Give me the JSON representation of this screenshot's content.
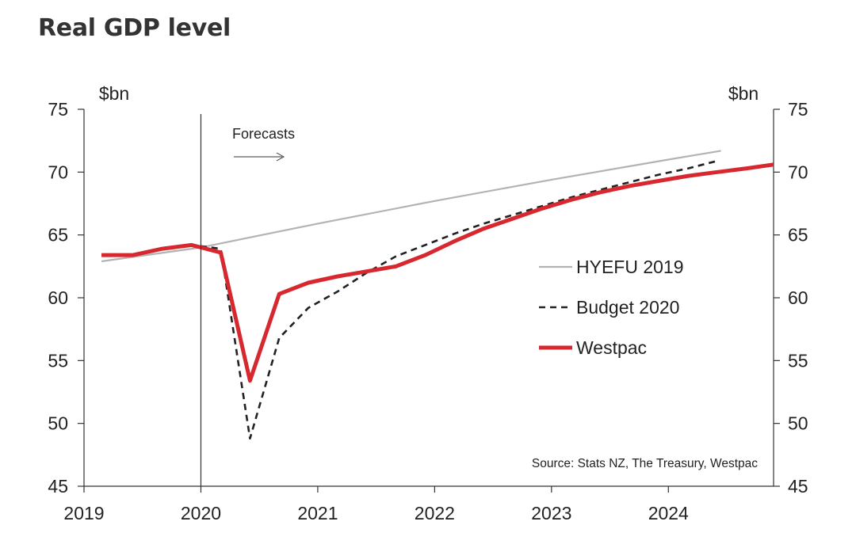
{
  "colors": {
    "hyefu": "#b3b3b3",
    "budget": "#222222",
    "westpac": "#d7282f",
    "axis": "#333333",
    "text": "#222222"
  },
  "chart_data": {
    "type": "line",
    "title": "Real GDP level",
    "ylabel_left": "$bn",
    "ylabel_right": "$bn",
    "ylim": [
      45,
      75
    ],
    "yticks": [
      45,
      50,
      55,
      60,
      65,
      70,
      75
    ],
    "xlim": [
      2019,
      2024.9
    ],
    "xticks": [
      2019,
      2020,
      2021,
      2022,
      2023,
      2024
    ],
    "forecast_start": 2020,
    "forecast_label": "Forecasts",
    "source": "Source: Stats NZ, The Treasury, Westpac",
    "legend_position": "right",
    "series": [
      {
        "name": "HYEFU 2019",
        "style": "solid-thin",
        "x": [
          2019.15,
          2020.0,
          2020.42,
          2021.0,
          2022.0,
          2023.0,
          2024.0,
          2024.45
        ],
        "y": [
          62.9,
          64.0,
          64.8,
          65.9,
          67.7,
          69.4,
          71.0,
          71.7
        ]
      },
      {
        "name": "Budget 2020",
        "style": "dashed",
        "x": [
          2019.15,
          2019.42,
          2019.67,
          2019.92,
          2020.17,
          2020.42,
          2020.67,
          2020.92,
          2021.17,
          2021.42,
          2021.67,
          2021.92,
          2022.17,
          2022.42,
          2022.67,
          2022.92,
          2023.17,
          2023.42,
          2023.67,
          2023.92,
          2024.17,
          2024.42
        ],
        "y": [
          63.4,
          63.4,
          63.9,
          64.2,
          63.9,
          48.8,
          56.8,
          59.2,
          60.5,
          62.0,
          63.3,
          64.2,
          65.1,
          65.9,
          66.6,
          67.3,
          68.0,
          68.6,
          69.2,
          69.8,
          70.3,
          70.9
        ]
      },
      {
        "name": "Westpac",
        "style": "solid-thick",
        "x": [
          2019.15,
          2019.42,
          2019.67,
          2019.92,
          2020.17,
          2020.42,
          2020.67,
          2020.92,
          2021.17,
          2021.42,
          2021.67,
          2021.92,
          2022.17,
          2022.42,
          2022.67,
          2022.92,
          2023.17,
          2023.42,
          2023.67,
          2023.92,
          2024.17,
          2024.42,
          2024.67,
          2024.9
        ],
        "y": [
          63.4,
          63.4,
          63.9,
          64.2,
          63.6,
          53.4,
          60.3,
          61.2,
          61.7,
          62.1,
          62.5,
          63.4,
          64.5,
          65.5,
          66.3,
          67.1,
          67.8,
          68.4,
          68.9,
          69.3,
          69.7,
          70.0,
          70.3,
          70.6
        ]
      }
    ]
  }
}
